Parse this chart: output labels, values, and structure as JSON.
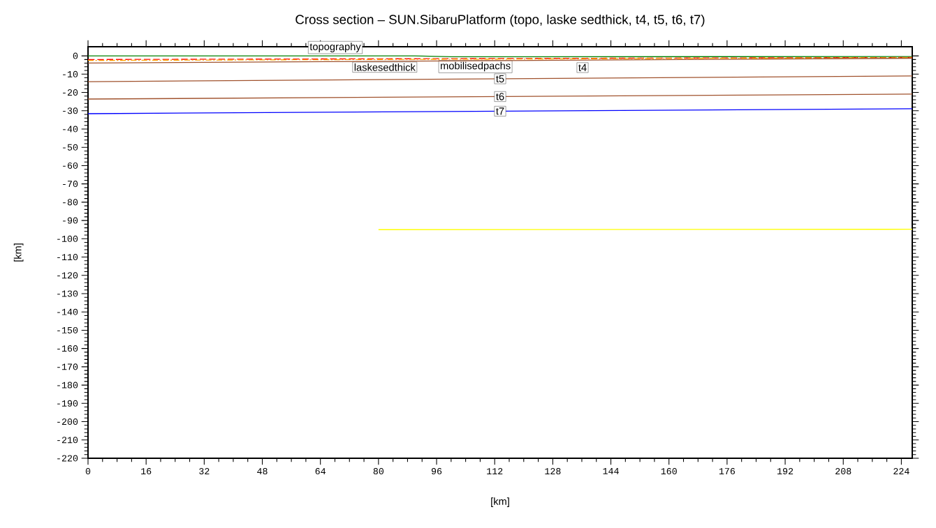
{
  "chart_data": {
    "type": "line",
    "title": "Cross section – SUN.SibaruPlatform (topo, laske sedthick, t4, t5, t6, t7)",
    "xlabel": "[km]",
    "ylabel": "[km]",
    "series": [
      {
        "name": "topography",
        "color": "#008000",
        "line_style": "solid",
        "x": [
          0,
          90,
          100,
          227
        ],
        "values": [
          0,
          0,
          -0.5,
          -0.4
        ]
      },
      {
        "name": "laskesedthick",
        "color": "#ff0000",
        "line_style": "dashed",
        "x": [
          0,
          227
        ],
        "values": [
          -2.0,
          -0.9
        ]
      },
      {
        "name": "mobilisedpachs",
        "color": "#ffa500",
        "line_style": "dashed",
        "x": [
          0,
          227
        ],
        "values": [
          -2.5,
          -1.0
        ]
      },
      {
        "name": "t4",
        "color": "#a0522d",
        "line_style": "solid",
        "x": [
          0,
          227
        ],
        "values": [
          -3.9,
          -1.3
        ]
      },
      {
        "name": "t5",
        "color": "#a0522d",
        "line_style": "solid",
        "x": [
          0,
          227
        ],
        "values": [
          -14.1,
          -11.0
        ]
      },
      {
        "name": "t6",
        "color": "#a0522d",
        "line_style": "solid",
        "x": [
          0,
          227
        ],
        "values": [
          -23.6,
          -20.9
        ]
      },
      {
        "name": "t7",
        "color": "#0000ff",
        "line_style": "solid",
        "x": [
          0,
          227
        ],
        "values": [
          -31.6,
          -28.9
        ]
      },
      {
        "color": "#ffff00",
        "line_style": "solid",
        "x": [
          80,
          227
        ],
        "values": [
          -95,
          -94.8
        ]
      }
    ],
    "xlim": [
      0,
      227
    ],
    "ylim": [
      -220,
      5
    ],
    "xticks": [
      0,
      16,
      32,
      48,
      64,
      80,
      96,
      112,
      128,
      144,
      160,
      176,
      192,
      208,
      224
    ],
    "yticks": [
      0,
      -10,
      -20,
      -30,
      -40,
      -50,
      -60,
      -70,
      -80,
      -90,
      -100,
      -110,
      -120,
      -130,
      -140,
      -150,
      -160,
      -170,
      -180,
      -190,
      -200,
      -210,
      -220
    ],
    "grid": false,
    "marker": "none"
  }
}
